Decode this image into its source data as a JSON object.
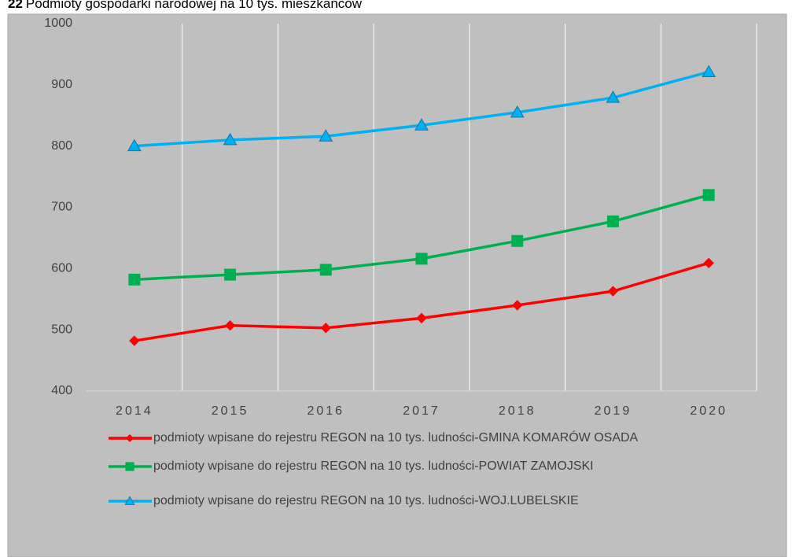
{
  "chart_data": {
    "type": "line",
    "title_number": "22",
    "title": "Podmioty gospodarki narodowej  na 10 tys. mieszkańców",
    "categories": [
      "2014",
      "2015",
      "2016",
      "2017",
      "2018",
      "2019",
      "2020"
    ],
    "series": [
      {
        "name": "podmioty wpisane do rejestru REGON na 10 tys. ludności-GMINA KOMARÓW OSADA",
        "color": "#ff0000",
        "marker": "diamond",
        "values": [
          482,
          507,
          503,
          519,
          540,
          563,
          609
        ]
      },
      {
        "name": "podmioty wpisane do rejestru REGON na 10 tys. ludności-POWIAT ZAMOJSKI",
        "color": "#00b050",
        "marker": "square",
        "values": [
          582,
          590,
          598,
          616,
          645,
          677,
          720
        ]
      },
      {
        "name": "podmioty wpisane do rejestru REGON na 10 tys. ludności-WOJ.LUBELSKIE",
        "color": "#00b0f0",
        "marker": "triangle",
        "values": [
          800,
          810,
          816,
          834,
          855,
          879,
          921
        ]
      }
    ],
    "ylim": [
      400,
      1000
    ],
    "yticks": [
      400,
      500,
      600,
      700,
      800,
      900,
      1000
    ],
    "grid": "vertical",
    "legend": "bottom"
  }
}
